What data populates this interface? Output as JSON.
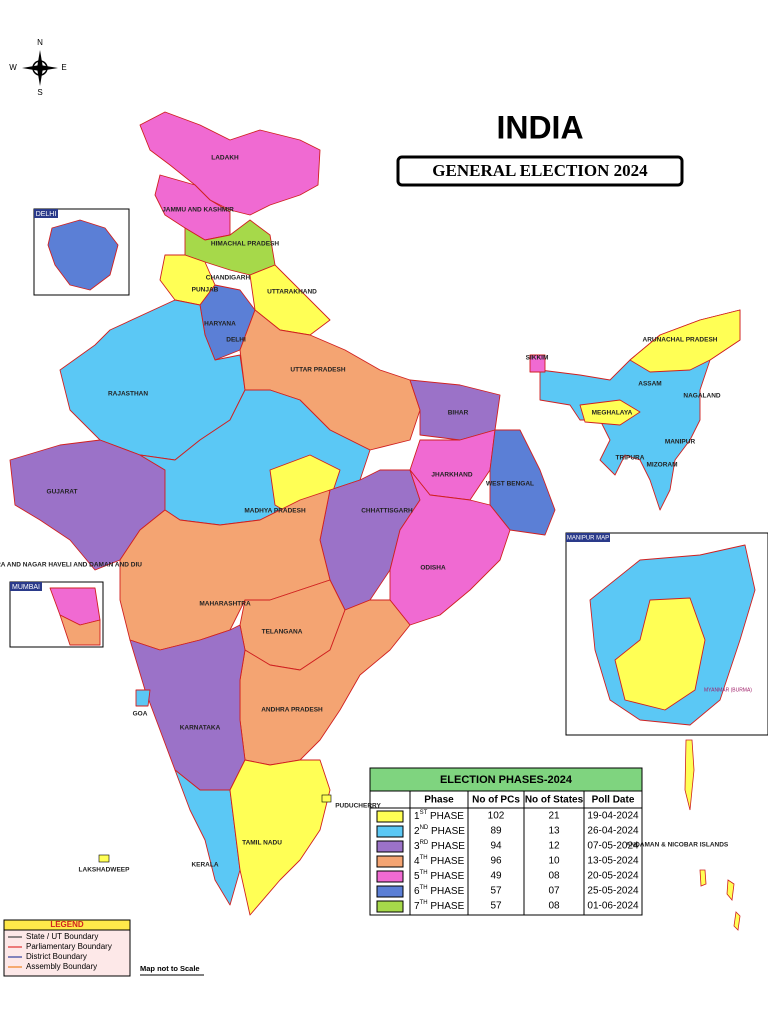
{
  "compass": {
    "n": "N",
    "s": "S",
    "e": "E",
    "w": "W"
  },
  "header": {
    "title": "INDIA",
    "subtitle": "GENERAL ELECTION 2024"
  },
  "insets": {
    "delhi": "DELHI",
    "mumbai": "MUMBAI",
    "manipur": "MANIPUR MAP",
    "myanmar": "MYANMAR (BURMA)"
  },
  "map": {
    "labels": [
      "LADAKH",
      "JAMMU AND KASHMIR",
      "HIMACHAL PRADESH",
      "CHANDIGARH",
      "PUNJAB",
      "UTTARAKHAND",
      "HARYANA",
      "DELHI",
      "RAJASTHAN",
      "UTTAR PRADESH",
      "SIKKIM",
      "ARUNACHAL PRADESH",
      "ASSAM",
      "NAGALAND",
      "MEGHALAYA",
      "MANIPUR",
      "TRIPURA",
      "MIZORAM",
      "BIHAR",
      "JHARKHAND",
      "WEST BENGAL",
      "GUJARAT",
      "MADHYA PRADESH",
      "CHHATTISGARH",
      "ODISHA",
      "MAHARASHTRA",
      "TELANGANA",
      "ANDHRA PRADESH",
      "GOA",
      "KARNATAKA",
      "KERALA",
      "TAMIL NADU",
      "PUDUCHERRY",
      "LAKSHADWEEP",
      "ANDAMAN & NICOBAR ISLANDS",
      "DADRA AND NAGAR HAVELI AND DAMAN AND DIU"
    ]
  },
  "table": {
    "title": "ELECTION PHASES-2024",
    "columns": [
      "Phase",
      "No of PCs",
      "No of States",
      "Poll Date"
    ],
    "rows": [
      {
        "color": "#ffff55",
        "num": "1",
        "sup": "ST",
        "phase": " PHASE",
        "pcs": "102",
        "states": "21",
        "date": "19-04-2024"
      },
      {
        "color": "#5bc8f5",
        "num": "2",
        "sup": "ND",
        "phase": " PHASE",
        "pcs": "89",
        "states": "13",
        "date": "26-04-2024"
      },
      {
        "color": "#9b72c8",
        "num": "3",
        "sup": "RD",
        "phase": " PHASE",
        "pcs": "94",
        "states": "12",
        "date": "07-05-2024"
      },
      {
        "color": "#f4a472",
        "num": "4",
        "sup": "TH",
        "phase": " PHASE",
        "pcs": "96",
        "states": "10",
        "date": "13-05-2024"
      },
      {
        "color": "#f06ad2",
        "num": "5",
        "sup": "TH",
        "phase": " PHASE",
        "pcs": "49",
        "states": "08",
        "date": "20-05-2024"
      },
      {
        "color": "#5b7fd6",
        "num": "6",
        "sup": "TH",
        "phase": " PHASE",
        "pcs": "57",
        "states": "07",
        "date": "25-05-2024"
      },
      {
        "color": "#a6d94a",
        "num": "7",
        "sup": "TH",
        "phase": " PHASE",
        "pcs": "57",
        "states": "08",
        "date": "01-06-2024"
      }
    ]
  },
  "legend": {
    "title": "LEGEND",
    "items": [
      {
        "label": "State / UT Boundary",
        "color": "#444444"
      },
      {
        "label": "Parliamentary Boundary",
        "color": "#e03030"
      },
      {
        "label": "District Boundary",
        "color": "#3040a0"
      },
      {
        "label": "Assembly Boundary",
        "color": "#f08020"
      }
    ]
  },
  "footer": {
    "note": "Map not to Scale"
  }
}
